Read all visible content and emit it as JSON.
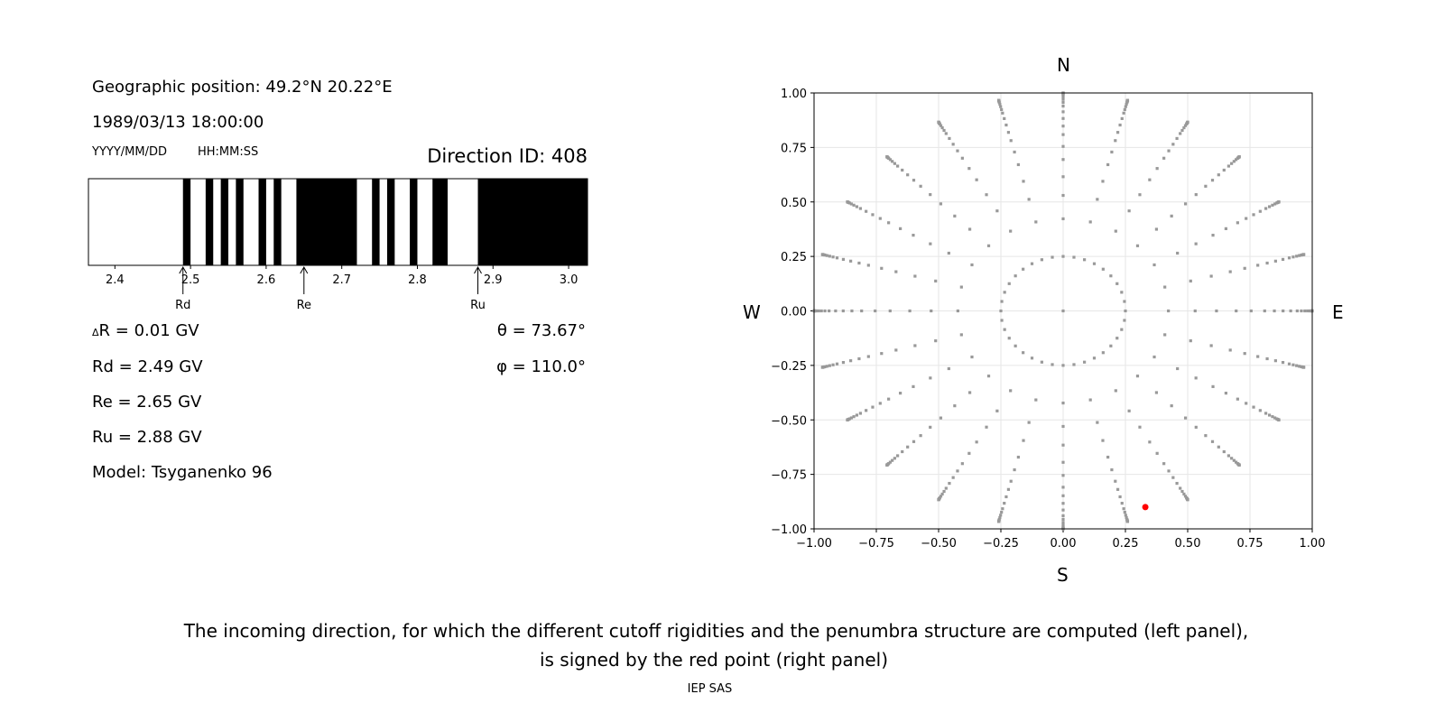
{
  "left_panel": {
    "position": "Geographic position: 49.2°N 20.22°E",
    "datetime": "1989/03/13 18:00:00",
    "date_format": "YYYY/MM/DD",
    "time_format": "HH:MM:SS",
    "direction": "Direction ID: 408",
    "delta_r": "R = 0.01 GV",
    "delta_symbol": "Δ",
    "rd": "Rd = 2.49 GV",
    "re": "Re = 2.65 GV",
    "ru": "Ru = 2.88 GV",
    "model": "Model: Tsyganenko 96",
    "theta": "θ = 73.67°",
    "phi": "φ = 110.0°",
    "markers": [
      {
        "label": "Rd",
        "value": 2.49
      },
      {
        "label": "Re",
        "value": 2.65
      },
      {
        "label": "Ru",
        "value": 2.88
      }
    ]
  },
  "caption_line1": "The incoming direction, for which the different cutoff rigidities and the penumbra structure are computed (left panel),",
  "caption_line2": "is signed by the red point (right panel)",
  "footer": "IEP SAS",
  "chart_data": [
    {
      "type": "bar",
      "xlim": [
        2.365,
        3.025
      ],
      "xticks": [
        "2.4",
        "2.5",
        "2.6",
        "2.7",
        "2.8",
        "2.9",
        "3.0"
      ],
      "forbidden_bands_black": [
        [
          2.49,
          2.5
        ],
        [
          2.52,
          2.53
        ],
        [
          2.54,
          2.55
        ],
        [
          2.56,
          2.57
        ],
        [
          2.59,
          2.6
        ],
        [
          2.61,
          2.62
        ],
        [
          2.64,
          2.72
        ],
        [
          2.74,
          2.75
        ],
        [
          2.76,
          2.77
        ],
        [
          2.79,
          2.8
        ],
        [
          2.82,
          2.84
        ],
        [
          2.88,
          3.025
        ]
      ]
    },
    {
      "type": "scatter",
      "xlim": [
        -1,
        1
      ],
      "ylim": [
        -1,
        1
      ],
      "grid": true,
      "xticks": [
        "−1.00",
        "−0.75",
        "−0.50",
        "−0.25",
        "0.00",
        "0.25",
        "0.50",
        "0.75",
        "1.00"
      ],
      "yticks": [
        "−1.00",
        "−0.75",
        "−0.50",
        "−0.25",
        "0.00",
        "0.25",
        "0.50",
        "0.75",
        "1.00"
      ],
      "compass": {
        "N": "N",
        "S": "S",
        "E": "E",
        "W": "W"
      },
      "grid_points": {
        "center": [
          0,
          0
        ],
        "inner_ring_radius": 0.25,
        "inner_ring_count": 36,
        "spoke_azimuth_step_deg": 15,
        "spoke_zenith_deg": [
          25,
          32,
          38,
          44,
          49,
          54,
          58,
          62,
          66,
          70,
          73,
          76,
          79,
          82,
          84,
          86,
          88,
          89,
          90
        ]
      },
      "point_color": "#999999",
      "selected_point": {
        "x": 0.33,
        "y": -0.9,
        "color": "#ff0000"
      }
    }
  ]
}
